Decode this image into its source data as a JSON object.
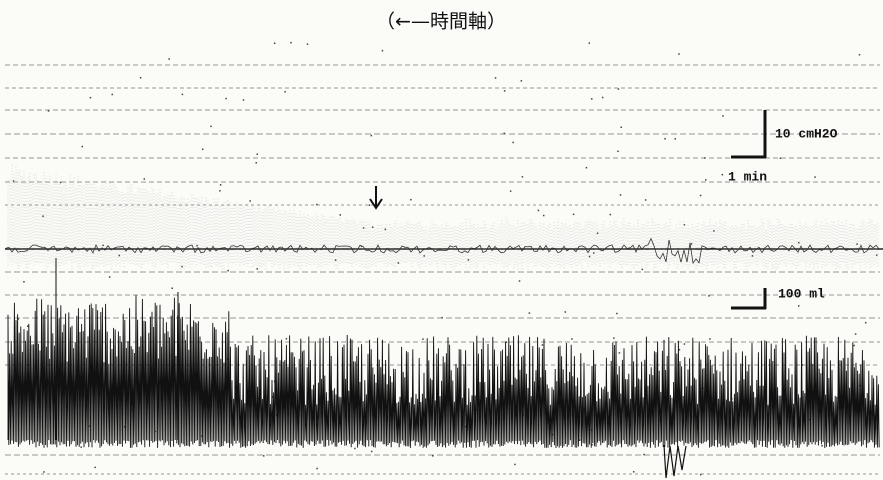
{
  "header": {
    "title": "（←—時間軸）"
  },
  "scale_bars": {
    "pressure": "10 cmH2O",
    "time": "1 min",
    "volume": "100 ml"
  }
}
